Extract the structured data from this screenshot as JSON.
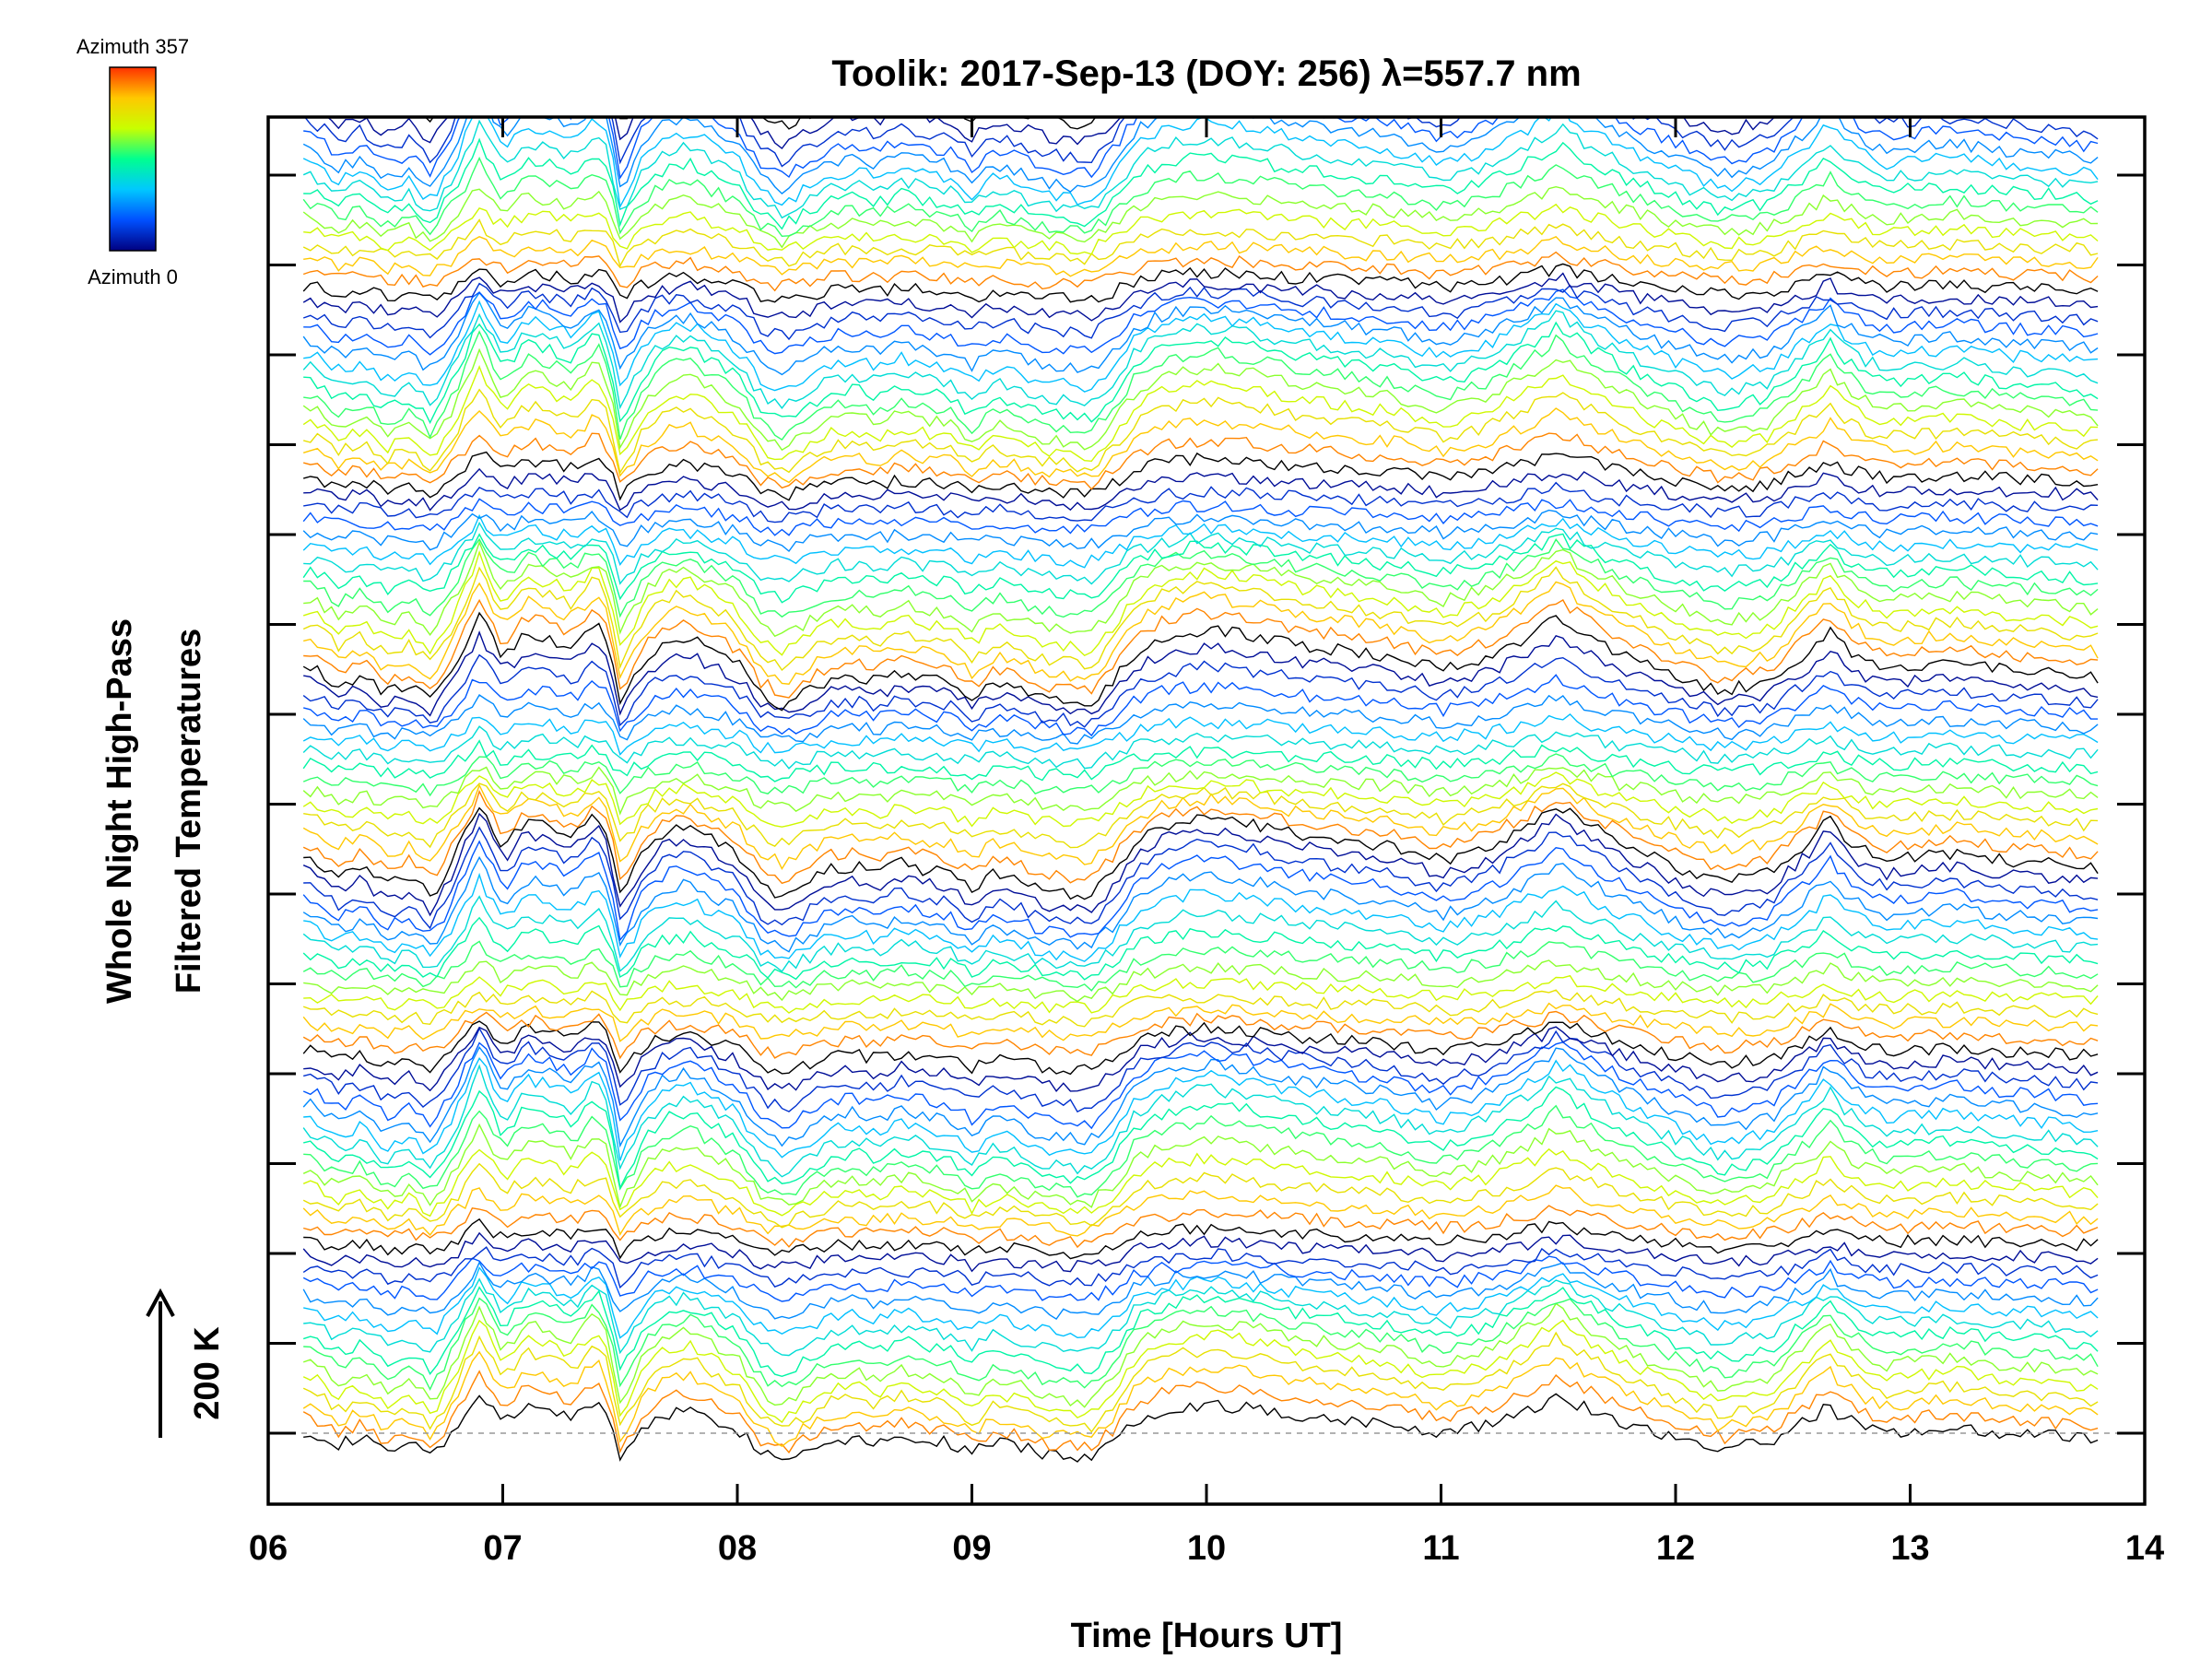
{
  "chart_data": {
    "type": "line",
    "title": "Toolik: 2017-Sep-13 (DOY: 256) λ=557.7 nm",
    "xlabel": "Time [Hours UT]",
    "ylabel_line1": "Whole Night High-Pass",
    "ylabel_line2": "Filtered Temperatures",
    "scale_bar_label": "200 K",
    "xlim": [
      6,
      14
    ],
    "x_tick_labels": [
      "06",
      "07",
      "08",
      "09",
      "10",
      "11",
      "12",
      "13",
      "14"
    ],
    "colorbar": {
      "max_label": "Azimuth 357",
      "min_label": "Azimuth 0",
      "stops": [
        "#000080",
        "#0050ff",
        "#00c8ff",
        "#00ff90",
        "#c8ff00",
        "#ffc800",
        "#ff3000"
      ]
    },
    "series_count": 110,
    "series_offset_K": 20,
    "x_start": 6.15,
    "x_end": 13.8,
    "profile": {
      "x": [
        6.15,
        6.2,
        6.3,
        6.4,
        6.5,
        6.6,
        6.7,
        6.8,
        6.9,
        7.0,
        7.1,
        7.2,
        7.3,
        7.4,
        7.45,
        7.5,
        7.55,
        7.6,
        7.7,
        7.8,
        7.9,
        8.0,
        8.1,
        8.2,
        8.3,
        8.4,
        8.5,
        8.6,
        8.7,
        8.8,
        8.9,
        9.0,
        9.1,
        9.2,
        9.3,
        9.4,
        9.5,
        9.6,
        9.7,
        9.8,
        9.9,
        10.0,
        10.2,
        10.4,
        10.6,
        10.8,
        11.0,
        11.2,
        11.4,
        11.5,
        11.6,
        11.8,
        12.0,
        12.2,
        12.4,
        12.5,
        12.6,
        12.65,
        12.7,
        12.8,
        12.9,
        13.0,
        13.2,
        13.4,
        13.6,
        13.8
      ],
      "y": [
        5,
        0,
        -25,
        -10,
        -40,
        -25,
        -55,
        10,
        90,
        20,
        60,
        50,
        35,
        75,
        40,
        -55,
        -25,
        15,
        45,
        50,
        30,
        10,
        -40,
        -60,
        -35,
        -15,
        -10,
        -20,
        -5,
        -15,
        -20,
        -45,
        -20,
        -30,
        -45,
        -50,
        -55,
        -20,
        30,
        50,
        60,
        65,
        55,
        40,
        30,
        20,
        0,
        20,
        60,
        85,
        60,
        20,
        -10,
        -35,
        -20,
        10,
        40,
        65,
        40,
        15,
        0,
        5,
        10,
        0,
        -5,
        -15
      ]
    }
  }
}
